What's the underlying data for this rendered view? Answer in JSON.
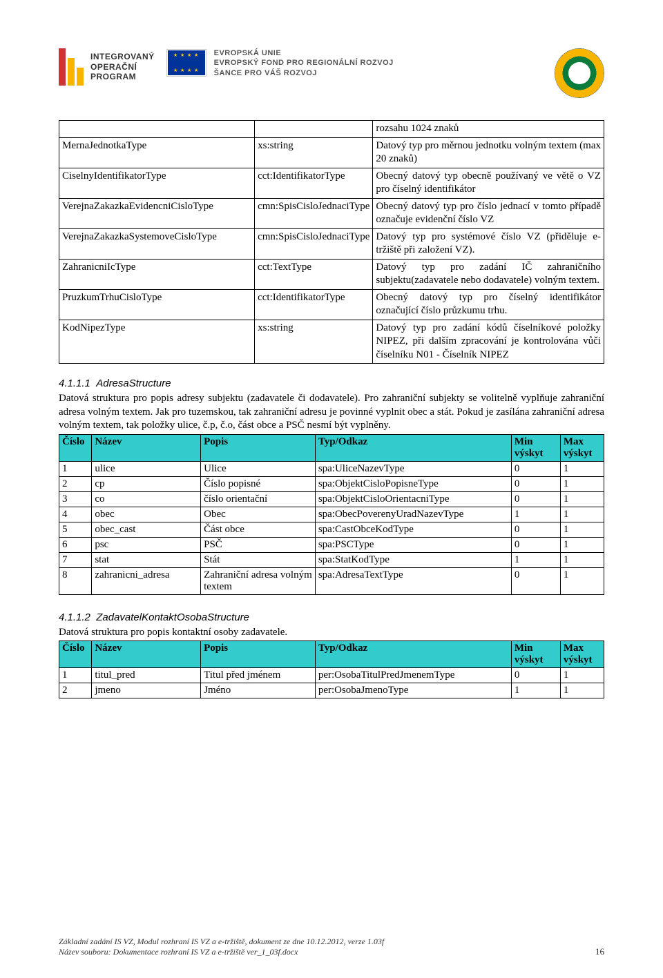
{
  "header": {
    "iop_line1": "INTEGROVANÝ",
    "iop_line2": "OPERAČNÍ",
    "iop_line3": "PROGRAM",
    "eu_line1": "EVROPSKÁ UNIE",
    "eu_line2": "EVROPSKÝ FOND PRO REGIONÁLNÍ ROZVOJ",
    "eu_line3": "ŠANCE PRO VÁŠ ROZVOJ"
  },
  "colors": {
    "table_header_bg": "#33cccc",
    "border": "#000000",
    "iop_red": "#c33333",
    "iop_yellow": "#f7b500",
    "eu_blue": "#003399",
    "eu_gold": "#ffcc00"
  },
  "types_table": {
    "rows": [
      {
        "name": "",
        "base": "",
        "desc": "rozsahu 1024 znaků"
      },
      {
        "name": "MernaJednotkaType",
        "base": "xs:string",
        "desc": "Datový typ pro měrnou jednotku volným textem (max 20 znaků)"
      },
      {
        "name": "CiselnyIdentifikatorType",
        "base": "cct:IdentifikatorType",
        "desc": "Obecný datový typ obecně používaný ve větě o VZ pro číselný identifikátor"
      },
      {
        "name": "VerejnaZakazkaEvidencniCisloType",
        "base": "cmn:SpisCisloJednaciType",
        "desc": "Obecný datový typ pro číslo jednací v tomto případě označuje evidenční číslo VZ"
      },
      {
        "name": "VerejnaZakazkaSystemoveCisloType",
        "base": "cmn:SpisCisloJednaciType",
        "desc": "Datový typ pro systémové číslo VZ (přiděluje e-tržiště při založení VZ)."
      },
      {
        "name": "ZahranicniIcType",
        "base": "cct:TextType",
        "desc": "Datový typ pro zadání IČ zahraničního subjektu(zadavatele nebo dodavatele) volným textem."
      },
      {
        "name": "PruzkumTrhuCisloType",
        "base": "cct:IdentifikatorType",
        "desc": "Obecný datový typ pro číselný identifikátor označující číslo průzkumu trhu."
      },
      {
        "name": "KodNipezType",
        "base": "xs:string",
        "desc": "Datový typ pro zadání kódů číselníkové položky NIPEZ, při dalším zpracování je kontrolována vůči číselníku N01 - Číselník NIPEZ"
      }
    ]
  },
  "section1": {
    "num": "4.1.1.1",
    "title": "AdresaStructure",
    "para": "Datová struktura pro popis adresy subjektu (zadavatele či dodavatele). Pro zahraniční subjekty se volitelně vyplňuje zahraniční adresa volným textem. Jak pro tuzemskou, tak zahraniční adresu je povinné vyplnit obec a stát. Pokud je zasílána zahraniční adresa volným textem, tak položky ulice, č.p, č.o, část obce a PSČ nesmí být vyplněny."
  },
  "table_header": {
    "h1": "Číslo",
    "h2": "Název",
    "h3": "Popis",
    "h4": "Typ/Odkaz",
    "h5": "Min výskyt",
    "h6": "Max výskyt"
  },
  "adresa_table": {
    "rows": [
      {
        "n": "1",
        "name": "ulice",
        "desc": "Ulice",
        "type": "spa:UliceNazevType",
        "min": "0",
        "max": "1"
      },
      {
        "n": "2",
        "name": "cp",
        "desc": "Číslo popisné",
        "type": "spa:ObjektCisloPopisneType",
        "min": "0",
        "max": "1"
      },
      {
        "n": "3",
        "name": "co",
        "desc": "číslo orientační",
        "type": "spa:ObjektCisloOrientacniType",
        "min": "0",
        "max": "1"
      },
      {
        "n": "4",
        "name": "obec",
        "desc": "Obec",
        "type": "spa:ObecPoverenyUradNazevType",
        "min": "1",
        "max": "1"
      },
      {
        "n": "5",
        "name": "obec_cast",
        "desc": "Část obce",
        "type": "spa:CastObceKodType",
        "min": "0",
        "max": "1"
      },
      {
        "n": "6",
        "name": "psc",
        "desc": "PSČ",
        "type": "spa:PSCType",
        "min": "0",
        "max": "1"
      },
      {
        "n": "7",
        "name": "stat",
        "desc": "Stát",
        "type": "spa:StatKodType",
        "min": "1",
        "max": "1"
      },
      {
        "n": "8",
        "name": "zahranicni_adresa",
        "desc": "Zahraniční adresa volným textem",
        "type": "spa:AdresaTextType",
        "min": "0",
        "max": "1"
      }
    ]
  },
  "section2": {
    "num": "4.1.1.2",
    "title": "ZadavatelKontaktOsobaStructure",
    "para": "Datová struktura pro popis kontaktní osoby zadavatele."
  },
  "kontakt_table": {
    "rows": [
      {
        "n": "1",
        "name": "titul_pred",
        "desc": "Titul před jménem",
        "type": "per:OsobaTitulPredJmenemType",
        "min": "0",
        "max": "1"
      },
      {
        "n": "2",
        "name": "jmeno",
        "desc": "Jméno",
        "type": "per:OsobaJmenoType",
        "min": "1",
        "max": "1"
      }
    ]
  },
  "footer": {
    "line1": "Základní zadání IS VZ, Modul rozhraní IS VZ a e-tržiště, dokument ze dne 10.12.2012, verze 1.03f",
    "line2": "Název souboru: Dokumentace rozhraní IS VZ a e-tržiště ver_1_03f.docx",
    "page": "16"
  }
}
